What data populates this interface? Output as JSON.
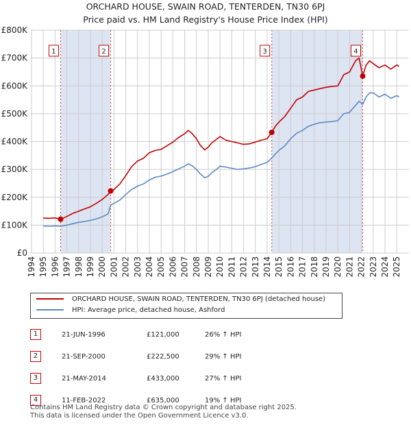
{
  "titles": {
    "line1": "ORCHARD HOUSE, SWAIN ROAD, TENTERDEN, TN30 6PJ",
    "line2": "Price paid vs. HM Land Registry's House Price Index (HPI)"
  },
  "colors": {
    "property": "#c00000",
    "hpi": "#5b8ac6",
    "shade": "#dde4f2",
    "grid": "#cccccc"
  },
  "legend": {
    "property": "ORCHARD HOUSE, SWAIN ROAD, TENTERDEN, TN30 6PJ (detached house)",
    "hpi": "HPI: Average price, detached house, Ashford"
  },
  "sales": [
    {
      "num": "1",
      "date": "21-JUN-1996",
      "price": "£121,000",
      "hpi": "26% ↑ HPI"
    },
    {
      "num": "2",
      "date": "21-SEP-2000",
      "price": "£222,500",
      "hpi": "29% ↑ HPI"
    },
    {
      "num": "3",
      "date": "21-MAY-2014",
      "price": "£433,000",
      "hpi": "27% ↑ HPI"
    },
    {
      "num": "4",
      "date": "11-FEB-2022",
      "price": "£635,000",
      "hpi": "19% ↑ HPI"
    }
  ],
  "footer": {
    "line1": "Contains HM Land Registry data © Crown copyright and database right 2025.",
    "line2": "This data is licensed under the Open Government Licence v3.0."
  },
  "chart_data": {
    "type": "line",
    "xlim": [
      1995,
      2025.3
    ],
    "ylim": [
      0,
      800000
    ],
    "x_ticks": [
      1994,
      1995,
      1996,
      1997,
      1998,
      1999,
      2000,
      2001,
      2002,
      2003,
      2004,
      2005,
      2006,
      2007,
      2008,
      2009,
      2010,
      2011,
      2012,
      2013,
      2014,
      2015,
      2016,
      2017,
      2018,
      2019,
      2020,
      2021,
      2022,
      2023,
      2024,
      2025
    ],
    "y_ticks": [
      {
        "value": 0,
        "label": "£0"
      },
      {
        "value": 100000,
        "label": "£100K"
      },
      {
        "value": 200000,
        "label": "£200K"
      },
      {
        "value": 300000,
        "label": "£300K"
      },
      {
        "value": 400000,
        "label": "£400K"
      },
      {
        "value": 500000,
        "label": "£500K"
      },
      {
        "value": 600000,
        "label": "£600K"
      },
      {
        "value": 700000,
        "label": "£700K"
      },
      {
        "value": 800000,
        "label": "£800K"
      }
    ],
    "shaded_periods": [
      [
        1996.47,
        2000.72
      ],
      [
        2014.39,
        2022.11
      ]
    ],
    "sale_points": [
      {
        "label": "1",
        "x": 1996.47,
        "y": 121000
      },
      {
        "label": "2",
        "x": 2000.72,
        "y": 222500
      },
      {
        "label": "3",
        "x": 2014.39,
        "y": 433000
      },
      {
        "label": "4",
        "x": 2022.11,
        "y": 635000
      }
    ],
    "series": [
      {
        "name": "ORCHARD HOUSE, SWAIN ROAD, TENTERDEN, TN30 6PJ (detached house)",
        "x": [
          1995,
          1995.5,
          1996,
          1996.47,
          1997,
          1997.5,
          1998,
          1998.5,
          1999,
          1999.5,
          2000,
          2000.5,
          2000.72,
          2001,
          2001.5,
          2002,
          2002.5,
          2003,
          2003.5,
          2004,
          2004.5,
          2005,
          2005.5,
          2006,
          2006.5,
          2007,
          2007.3,
          2007.6,
          2008,
          2008.3,
          2008.7,
          2009,
          2009.3,
          2009.7,
          2010,
          2010.5,
          2011,
          2011.5,
          2012,
          2012.5,
          2013,
          2013.5,
          2014,
          2014.39,
          2014.7,
          2015,
          2015.5,
          2016,
          2016.5,
          2017,
          2017.5,
          2018,
          2018.5,
          2019,
          2019.5,
          2020,
          2020.5,
          2021,
          2021.5,
          2021.8,
          2022.11,
          2022.4,
          2022.7,
          2023,
          2023.5,
          2024,
          2024.5,
          2025,
          2025.2
        ],
        "y": [
          125000,
          124000,
          126000,
          121000,
          131000,
          142000,
          150000,
          158000,
          166000,
          178000,
          192000,
          210000,
          222500,
          228000,
          248000,
          278000,
          310000,
          330000,
          340000,
          360000,
          368000,
          372000,
          385000,
          398000,
          415000,
          428000,
          440000,
          430000,
          410000,
          388000,
          370000,
          380000,
          395000,
          408000,
          418000,
          405000,
          400000,
          395000,
          390000,
          392000,
          398000,
          405000,
          410000,
          433000,
          455000,
          470000,
          490000,
          520000,
          550000,
          560000,
          580000,
          585000,
          590000,
          595000,
          598000,
          600000,
          640000,
          650000,
          690000,
          700000,
          635000,
          675000,
          690000,
          680000,
          665000,
          675000,
          660000,
          675000,
          670000
        ]
      },
      {
        "name": "HPI: Average price, detached house, Ashford",
        "x": [
          1995,
          1995.5,
          1996,
          1996.47,
          1997,
          1997.5,
          1998,
          1998.5,
          1999,
          1999.5,
          2000,
          2000.5,
          2000.72,
          2001,
          2001.5,
          2002,
          2002.5,
          2003,
          2003.5,
          2004,
          2004.5,
          2005,
          2005.5,
          2006,
          2006.5,
          2007,
          2007.3,
          2007.6,
          2008,
          2008.3,
          2008.7,
          2009,
          2009.3,
          2009.7,
          2010,
          2010.5,
          2011,
          2011.5,
          2012,
          2012.5,
          2013,
          2013.5,
          2014,
          2014.39,
          2014.7,
          2015,
          2015.5,
          2016,
          2016.5,
          2017,
          2017.5,
          2018,
          2018.5,
          2019,
          2019.5,
          2020,
          2020.5,
          2021,
          2021.5,
          2021.8,
          2022.11,
          2022.4,
          2022.7,
          2023,
          2023.5,
          2024,
          2024.5,
          2025,
          2025.2
        ],
        "y": [
          97000,
          96000,
          97000,
          96000,
          100000,
          105000,
          110000,
          113000,
          117000,
          122000,
          130000,
          140000,
          172000,
          178000,
          190000,
          210000,
          228000,
          240000,
          248000,
          262000,
          272000,
          276000,
          283000,
          292000,
          302000,
          312000,
          320000,
          314000,
          300000,
          285000,
          270000,
          275000,
          288000,
          300000,
          312000,
          308000,
          304000,
          300000,
          302000,
          305000,
          310000,
          318000,
          325000,
          341000,
          355000,
          368000,
          385000,
          410000,
          430000,
          440000,
          455000,
          462000,
          468000,
          470000,
          472000,
          475000,
          500000,
          505000,
          530000,
          545000,
          534000,
          560000,
          575000,
          575000,
          560000,
          570000,
          555000,
          565000,
          560000
        ]
      }
    ]
  }
}
